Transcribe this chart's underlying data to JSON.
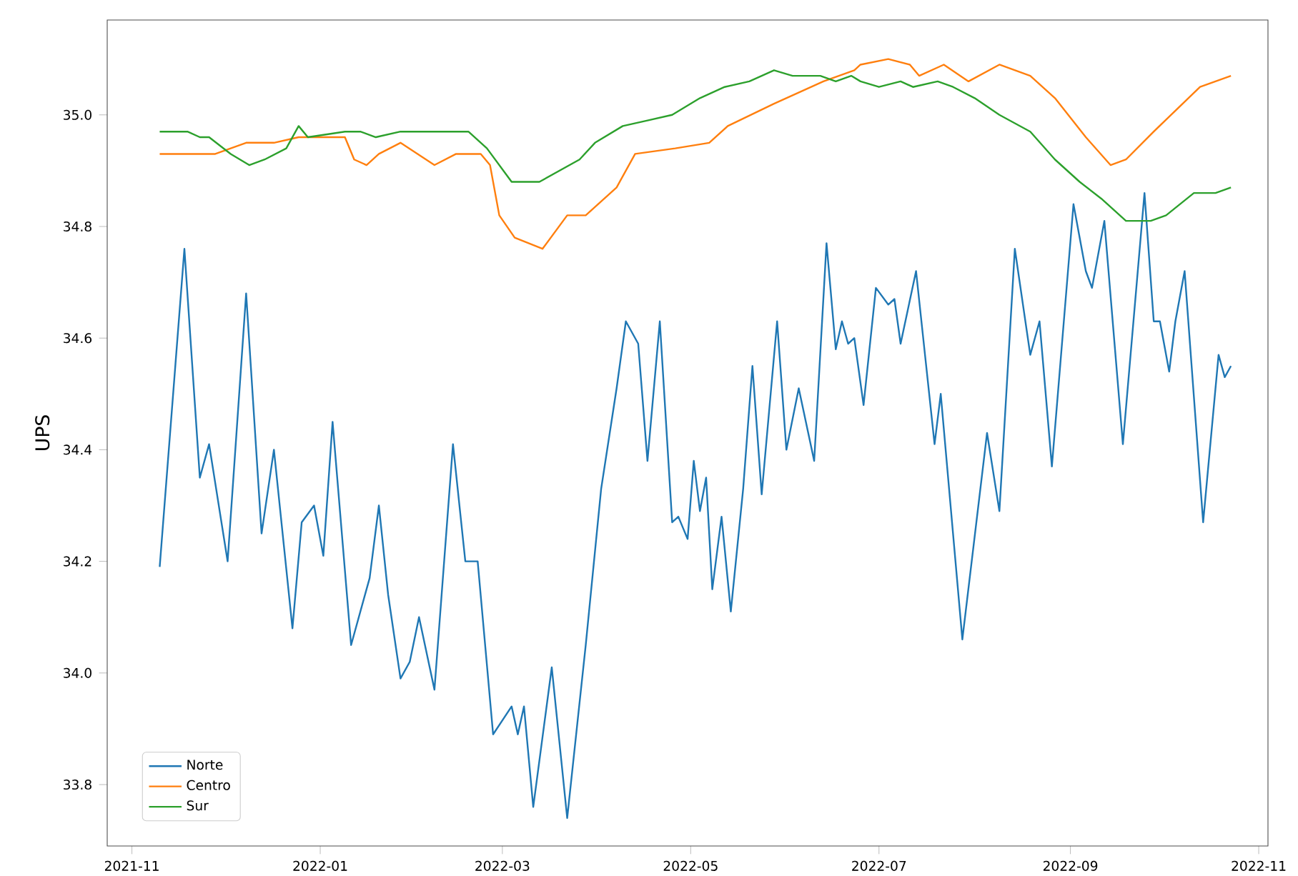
{
  "chart_data": {
    "type": "line",
    "ylabel": "UPS",
    "legend": "bottom left",
    "xlim": [
      "2021-10-24",
      "2022-11-04"
    ],
    "ylim": [
      33.69,
      35.17
    ],
    "xticks": [
      "2021-11",
      "2022-01",
      "2022-03",
      "2022-05",
      "2022-07",
      "2022-09",
      "2022-11"
    ],
    "yticks": [
      33.8,
      {
        "value": 34,
        "label": "34.0"
      },
      34.2,
      34.4,
      34.6,
      34.8,
      {
        "value": 35,
        "label": "35.0"
      }
    ],
    "series": [
      {
        "name": "Norte",
        "color": "#1f77b4",
        "x": [
          "2021-11-10",
          "2021-11-18",
          "2021-11-23",
          "2021-11-26",
          "2021-12-02",
          "2021-12-08",
          "2021-12-13",
          "2021-12-17",
          "2021-12-23",
          "2021-12-26",
          "2021-12-30",
          "2022-01-02",
          "2022-01-05",
          "2022-01-11",
          "2022-01-17",
          "2022-01-20",
          "2022-01-23",
          "2022-01-27",
          "2022-01-30",
          "2022-02-02",
          "2022-02-07",
          "2022-02-13",
          "2022-02-17",
          "2022-02-21",
          "2022-02-26",
          "2022-03-04",
          "2022-03-06",
          "2022-03-08",
          "2022-03-11",
          "2022-03-17",
          "2022-03-22",
          "2022-03-28",
          "2022-04-02",
          "2022-04-07",
          "2022-04-10",
          "2022-04-14",
          "2022-04-17",
          "2022-04-21",
          "2022-04-25",
          "2022-04-27",
          "2022-04-30",
          "2022-05-02",
          "2022-05-04",
          "2022-05-06",
          "2022-05-08",
          "2022-05-11",
          "2022-05-14",
          "2022-05-18",
          "2022-05-21",
          "2022-05-24",
          "2022-05-29",
          "2022-06-01",
          "2022-06-05",
          "2022-06-10",
          "2022-06-14",
          "2022-06-17",
          "2022-06-19",
          "2022-06-21",
          "2022-06-23",
          "2022-06-26",
          "2022-06-30",
          "2022-07-04",
          "2022-07-06",
          "2022-07-08",
          "2022-07-13",
          "2022-07-19",
          "2022-07-21",
          "2022-07-28",
          "2022-08-05",
          "2022-08-09",
          "2022-08-14",
          "2022-08-19",
          "2022-08-22",
          "2022-08-26",
          "2022-09-02",
          "2022-09-06",
          "2022-09-08",
          "2022-09-12",
          "2022-09-18",
          "2022-09-25",
          "2022-09-28",
          "2022-09-30",
          "2022-10-03",
          "2022-10-05",
          "2022-10-08",
          "2022-10-14",
          "2022-10-19",
          "2022-10-21",
          "2022-10-23"
        ],
        "values": [
          34.19,
          34.76,
          34.35,
          34.41,
          34.2,
          34.68,
          34.25,
          34.4,
          34.08,
          34.27,
          34.3,
          34.21,
          34.45,
          34.05,
          34.17,
          34.3,
          34.14,
          33.99,
          34.02,
          34.1,
          33.97,
          34.41,
          34.2,
          34.2,
          33.89,
          33.94,
          33.89,
          33.94,
          33.76,
          34.01,
          33.74,
          34.05,
          34.33,
          34.51,
          34.63,
          34.59,
          34.38,
          34.63,
          34.27,
          34.28,
          34.24,
          34.38,
          34.29,
          34.35,
          34.15,
          34.28,
          34.11,
          34.33,
          34.55,
          34.32,
          34.63,
          34.4,
          34.51,
          34.38,
          34.77,
          34.58,
          34.63,
          34.59,
          34.6,
          34.48,
          34.69,
          34.66,
          34.67,
          34.59,
          34.72,
          34.41,
          34.5,
          34.06,
          34.43,
          34.29,
          34.76,
          34.57,
          34.63,
          34.37,
          34.84,
          34.72,
          34.69,
          34.81,
          34.41,
          34.86,
          34.63,
          34.63,
          34.54,
          34.63,
          34.72,
          34.27,
          34.57,
          34.53,
          34.55
        ]
      },
      {
        "name": "Centro",
        "color": "#ff7f0e",
        "x": [
          "2021-11-10",
          "2021-11-23",
          "2021-11-28",
          "2021-12-08",
          "2021-12-17",
          "2021-12-25",
          "2022-01-04",
          "2022-01-09",
          "2022-01-12",
          "2022-01-16",
          "2022-01-20",
          "2022-01-27",
          "2022-02-07",
          "2022-02-14",
          "2022-02-22",
          "2022-02-25",
          "2022-02-28",
          "2022-03-05",
          "2022-03-14",
          "2022-03-22",
          "2022-03-28",
          "2022-04-07",
          "2022-04-13",
          "2022-04-26",
          "2022-05-07",
          "2022-05-13",
          "2022-05-28",
          "2022-06-13",
          "2022-06-23",
          "2022-06-25",
          "2022-07-04",
          "2022-07-11",
          "2022-07-14",
          "2022-07-22",
          "2022-07-30",
          "2022-08-09",
          "2022-08-19",
          "2022-08-27",
          "2022-09-06",
          "2022-09-14",
          "2022-09-19",
          "2022-09-28",
          "2022-10-13",
          "2022-10-23"
        ],
        "values": [
          34.93,
          34.93,
          34.93,
          34.95,
          34.95,
          34.96,
          34.96,
          34.96,
          34.92,
          34.91,
          34.93,
          34.95,
          34.91,
          34.93,
          34.93,
          34.91,
          34.82,
          34.78,
          34.76,
          34.82,
          34.82,
          34.87,
          34.93,
          34.94,
          34.95,
          34.98,
          35.02,
          35.06,
          35.08,
          35.09,
          35.1,
          35.09,
          35.07,
          35.09,
          35.06,
          35.09,
          35.07,
          35.03,
          34.96,
          34.91,
          34.92,
          34.97,
          35.05,
          35.07
        ]
      },
      {
        "name": "Sur",
        "color": "#2ca02c",
        "x": [
          "2021-11-10",
          "2021-11-14",
          "2021-11-19",
          "2021-11-23",
          "2021-11-26",
          "2021-12-03",
          "2021-12-09",
          "2021-12-14",
          "2021-12-21",
          "2021-12-25",
          "2021-12-28",
          "2022-01-09",
          "2022-01-14",
          "2022-01-19",
          "2022-01-27",
          "2022-02-07",
          "2022-02-18",
          "2022-02-24",
          "2022-03-04",
          "2022-03-13",
          "2022-03-26",
          "2022-03-31",
          "2022-04-09",
          "2022-04-17",
          "2022-04-25",
          "2022-05-04",
          "2022-05-12",
          "2022-05-20",
          "2022-05-28",
          "2022-06-03",
          "2022-06-12",
          "2022-06-17",
          "2022-06-22",
          "2022-06-25",
          "2022-07-01",
          "2022-07-08",
          "2022-07-12",
          "2022-07-20",
          "2022-07-25",
          "2022-08-01",
          "2022-08-09",
          "2022-08-19",
          "2022-08-27",
          "2022-09-04",
          "2022-09-11",
          "2022-09-19",
          "2022-09-27",
          "2022-10-02",
          "2022-10-11",
          "2022-10-18",
          "2022-10-23"
        ],
        "values": [
          34.97,
          34.97,
          34.97,
          34.96,
          34.96,
          34.93,
          34.91,
          34.92,
          34.94,
          34.98,
          34.96,
          34.97,
          34.97,
          34.96,
          34.97,
          34.97,
          34.97,
          34.94,
          34.88,
          34.88,
          34.92,
          34.95,
          34.98,
          34.99,
          35.0,
          35.03,
          35.05,
          35.06,
          35.08,
          35.07,
          35.07,
          35.06,
          35.07,
          35.06,
          35.05,
          35.06,
          35.05,
          35.06,
          35.05,
          35.03,
          35.0,
          34.97,
          34.92,
          34.88,
          34.85,
          34.81,
          34.81,
          34.82,
          34.86,
          34.86,
          34.87
        ]
      }
    ]
  }
}
